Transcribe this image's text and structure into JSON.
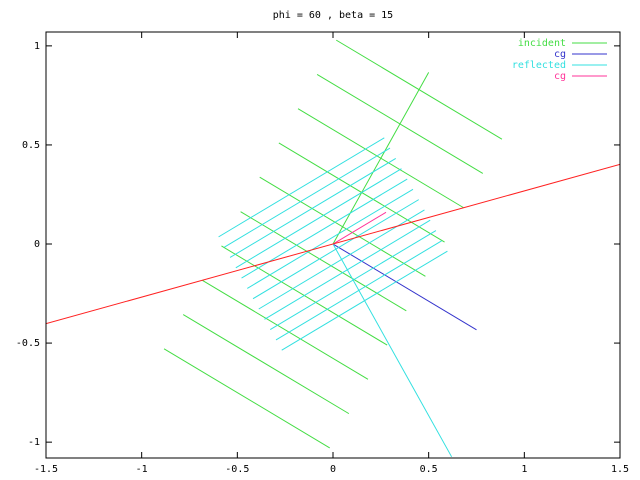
{
  "chart_data": {
    "type": "line",
    "title": "phi = 60 , beta = 15",
    "xlim": [
      -1.5,
      1.5
    ],
    "ylim": [
      -1.08,
      1.07
    ],
    "xticks": [
      -1.5,
      -1,
      -0.5,
      0,
      0.5,
      1,
      1.5
    ],
    "yticks": [
      -1,
      -0.5,
      0,
      0.5,
      1
    ],
    "legend": "top right",
    "series": [
      {
        "name": "incident",
        "color": "#44dd44",
        "x": [
          0,
          0.5,
          null,
          0.017,
          0.883,
          null,
          -0.083,
          0.783,
          null,
          -0.183,
          0.683,
          null,
          -0.283,
          0.583,
          null,
          -0.383,
          0.483,
          null,
          -0.483,
          0.383,
          null,
          -0.583,
          0.283,
          null,
          -0.683,
          0.183,
          null,
          -0.783,
          0.083,
          null,
          -0.883,
          -0.017
        ],
        "values": [
          0,
          0.866,
          null,
          1.029,
          0.529,
          null,
          0.856,
          0.356,
          null,
          0.683,
          0.183,
          null,
          0.51,
          0.01,
          null,
          0.337,
          -0.163,
          null,
          0.163,
          -0.337,
          null,
          -0.01,
          -0.51,
          null,
          -0.183,
          -0.683,
          null,
          -0.356,
          -0.856,
          null,
          -0.529,
          -1.029
        ]
      },
      {
        "name": "cg",
        "color": "#3333cc",
        "x": [
          0,
          0.75
        ],
        "values": [
          0,
          -0.433
        ]
      },
      {
        "name": "reflected",
        "color": "#33e0e0",
        "x": [
          0,
          0.62,
          null,
          -0.598,
          0.268,
          null,
          -0.568,
          0.298,
          null,
          -0.538,
          0.328,
          null,
          -0.508,
          0.358,
          null,
          -0.478,
          0.388,
          null,
          -0.448,
          0.418,
          null,
          -0.418,
          0.448,
          null,
          -0.388,
          0.478,
          null,
          -0.358,
          0.508,
          null,
          -0.328,
          0.538,
          null,
          -0.298,
          0.568,
          null,
          -0.268,
          0.598
        ],
        "values": [
          0,
          -1.074,
          null,
          0.036,
          0.536,
          null,
          -0.016,
          0.484,
          null,
          -0.068,
          0.432,
          null,
          -0.12,
          0.38,
          null,
          -0.172,
          0.328,
          null,
          -0.224,
          0.276,
          null,
          -0.276,
          0.224,
          null,
          -0.328,
          0.172,
          null,
          -0.38,
          0.12,
          null,
          -0.432,
          0.068,
          null,
          -0.484,
          0.016,
          null,
          -0.536,
          -0.036
        ]
      },
      {
        "name": "cg",
        "color": "#ff3399",
        "x": [
          0,
          0.277
        ],
        "values": [
          0,
          0.16
        ]
      },
      {
        "color": "#ff2222",
        "x": [
          -1.5,
          1.5
        ],
        "values": [
          -0.402,
          0.402
        ]
      }
    ]
  }
}
